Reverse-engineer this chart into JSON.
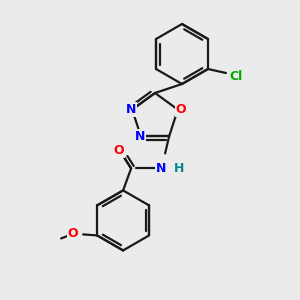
{
  "background_color": "#ebebeb",
  "bond_color": "#1a1a1a",
  "atom_colors": {
    "N": "#0000ff",
    "O": "#ff0000",
    "Cl": "#00aa00",
    "H": "#008888",
    "C": "#1a1a1a"
  },
  "font_size": 9,
  "lw": 1.6
}
